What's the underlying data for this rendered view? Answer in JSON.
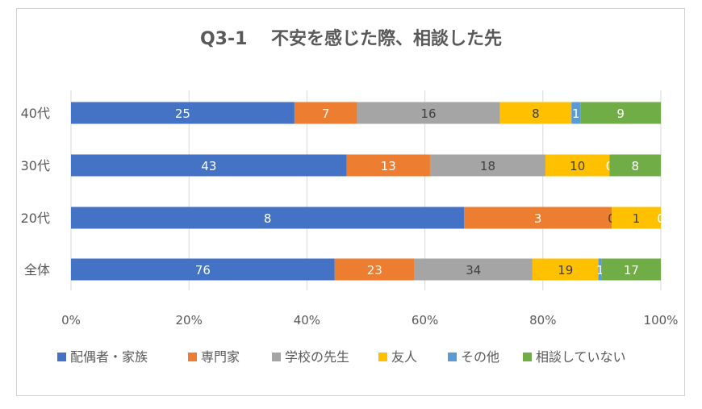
{
  "chart_data": {
    "type": "bar",
    "orientation": "horizontal",
    "stacked": "percent",
    "title": "Q3-1　 不安を感じた際、相談した先",
    "categories": [
      "40代",
      "30代",
      "20代",
      "全体"
    ],
    "series": [
      {
        "name": "配偶者・家族",
        "color": "#4472C4",
        "values": [
          25,
          43,
          8,
          76
        ]
      },
      {
        "name": "専門家",
        "color": "#ED7D31",
        "values": [
          7,
          13,
          3,
          23
        ]
      },
      {
        "name": "学校の先生",
        "color": "#A5A5A5",
        "values": [
          16,
          18,
          0,
          34
        ]
      },
      {
        "name": "友人",
        "color": "#FFC000",
        "values": [
          8,
          10,
          1,
          19
        ]
      },
      {
        "name": "その他",
        "color": "#5B9BD5",
        "values": [
          1,
          0,
          0,
          1
        ]
      },
      {
        "name": "相談していない",
        "color": "#70AD47",
        "values": [
          9,
          8,
          0,
          17
        ]
      }
    ],
    "x_ticks": [
      "0%",
      "20%",
      "40%",
      "60%",
      "80%",
      "100%"
    ],
    "xlim": [
      0,
      100
    ],
    "grid": true,
    "legend_position": "bottom"
  }
}
